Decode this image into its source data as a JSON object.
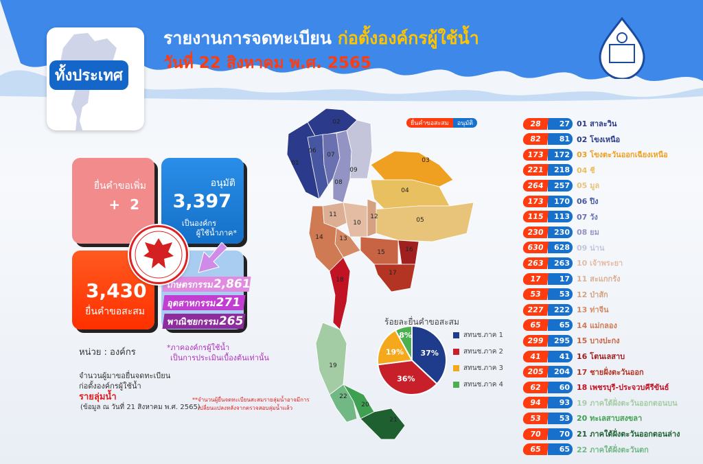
{
  "header": {
    "title_main": "รายงานการจดทะเบียน",
    "title_highlight": "ก่อตั้งองค์กรผู้ใช้น้ำ",
    "date": "วันที่ 22 สิงหาคม พ.ศ. 2565",
    "scope": "ทั้งประเทศ"
  },
  "cards": {
    "additional": {
      "label": "ยื่นคำขอเพิ่ม",
      "value": "+  2"
    },
    "approved": {
      "label": "อนุมัติ",
      "value": "3,397",
      "sub1": "เป็นองค์กร",
      "sub2": "ผู้ใช้น้ำภาค*"
    },
    "cumulative": {
      "value": "3,430",
      "label": "ยื่นคำขอสะสม"
    },
    "sectors": [
      {
        "label": "เกษตรกรรม",
        "value": "2,861",
        "color": "#e08ae0"
      },
      {
        "label": "อุตสาหกรรม",
        "value": "271",
        "color": "#c23ed2"
      },
      {
        "label": "พาณิชยกรรม",
        "value": "265",
        "color": "#8e2c9e"
      }
    ]
  },
  "notes": {
    "unit": "หน่วย : องค์กร",
    "sector_note1": "*ภาคองค์กรผู้ใช้น้ำ",
    "sector_note2": "เป็นการประเมินเบื้องต้นเท่านั้น",
    "basin_title1": "จำนวนผู้มาขอยื่นจดทะเบียน",
    "basin_title2": "ก่อตั้งองค์กรผู้ใช้น้ำ",
    "basin_title3": "รายลุ่มน้ำ",
    "basin_date": "(ข้อมูล ณ วันที่ 21 สิงหาคม พ.ศ. 2565)",
    "footnote1": "**จำนวนผู้ยื่นจดทะเบียนสะสมรายลุ่มน้ำอาจมีการ",
    "footnote2": "เปลี่ยนแปลงหลังจากตรวจสอบลุ่มน้ำแล้ว"
  },
  "legend": {
    "cumulative": "ยื่นคำขอสะสม",
    "approved": "อนุมัติ",
    "cumulative_color": "#ff3b10",
    "approved_color": "#1670cc"
  },
  "basins": [
    {
      "no": "01",
      "name": "สาละวิน",
      "cum": "28",
      "app": "27",
      "color": "#2b3a8a"
    },
    {
      "no": "02",
      "name": "โขงเหนือ",
      "cum": "82",
      "app": "81",
      "color": "#2b3a8a"
    },
    {
      "no": "03",
      "name": "โขงตะวันออกเฉียงเหนือ",
      "cum": "173",
      "app": "172",
      "color": "#f0a020"
    },
    {
      "no": "04",
      "name": "ชี",
      "cum": "221",
      "app": "218",
      "color": "#e8c060"
    },
    {
      "no": "05",
      "name": "มูล",
      "cum": "264",
      "app": "257",
      "color": "#e8c47a"
    },
    {
      "no": "06",
      "name": "ปิง",
      "cum": "173",
      "app": "170",
      "color": "#4756a0"
    },
    {
      "no": "07",
      "name": "วัง",
      "cum": "115",
      "app": "113",
      "color": "#6a70b0"
    },
    {
      "no": "08",
      "name": "ยม",
      "cum": "230",
      "app": "230",
      "color": "#9494c4"
    },
    {
      "no": "09",
      "name": "น่าน",
      "cum": "630",
      "app": "628",
      "color": "#c4c4da"
    },
    {
      "no": "10",
      "name": "เจ้าพระยา",
      "cum": "263",
      "app": "263",
      "color": "#e4bca4"
    },
    {
      "no": "11",
      "name": "สะแกกรัง",
      "cum": "17",
      "app": "17",
      "color": "#dcae94"
    },
    {
      "no": "12",
      "name": "ป่าสัก",
      "cum": "53",
      "app": "53",
      "color": "#d4a282"
    },
    {
      "no": "13",
      "name": "ท่าจีน",
      "cum": "227",
      "app": "222",
      "color": "#d48a64"
    },
    {
      "no": "14",
      "name": "แม่กลอง",
      "cum": "65",
      "app": "65",
      "color": "#d07a54"
    },
    {
      "no": "15",
      "name": "บางปะกง",
      "cum": "299",
      "app": "295",
      "color": "#c86444"
    },
    {
      "no": "16",
      "name": "โตนเลสาบ",
      "cum": "41",
      "app": "41",
      "color": "#a02020"
    },
    {
      "no": "17",
      "name": "ชายฝั่งตะวันออก",
      "cum": "205",
      "app": "204",
      "color": "#b43424"
    },
    {
      "no": "18",
      "name": "เพชรบุรี-ประจวบคีรีขันธ์",
      "cum": "62",
      "app": "60",
      "color": "#c01424"
    },
    {
      "no": "19",
      "name": "ภาคใต้ฝั่งตะวันออกตอนบน",
      "cum": "94",
      "app": "93",
      "color": "#a4cca4"
    },
    {
      "no": "20",
      "name": "ทะเลสาบสงขลา",
      "cum": "53",
      "app": "53",
      "color": "#3ea050"
    },
    {
      "no": "21",
      "name": "ภาคใต้ฝั่งตะวันออกตอนล่าง",
      "cum": "70",
      "app": "70",
      "color": "#1e6030"
    },
    {
      "no": "22",
      "name": "ภาคใต้ฝั่งตะวันตก",
      "cum": "65",
      "app": "65",
      "color": "#72b884"
    }
  ],
  "chart_data": {
    "type": "pie",
    "title": "ร้อยละยื่นคำขอสะสม",
    "categories": [
      "สทนช.ภาค 1",
      "สทนช.ภาค 2",
      "สทนช.ภาค 3",
      "สทนช.ภาค 4"
    ],
    "values": [
      37,
      36,
      19,
      8
    ],
    "labels": [
      "37%",
      "36%",
      "19%",
      "8%"
    ],
    "colors": [
      "#1f3c8c",
      "#c8202a",
      "#f5a81c",
      "#4caf50"
    ],
    "legend": "right"
  }
}
